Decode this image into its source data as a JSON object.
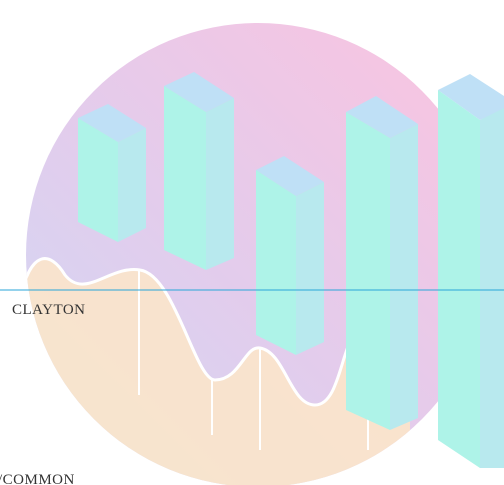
{
  "caption": {
    "name": "CLAYTON",
    "footer": "/COMMON"
  }
}
